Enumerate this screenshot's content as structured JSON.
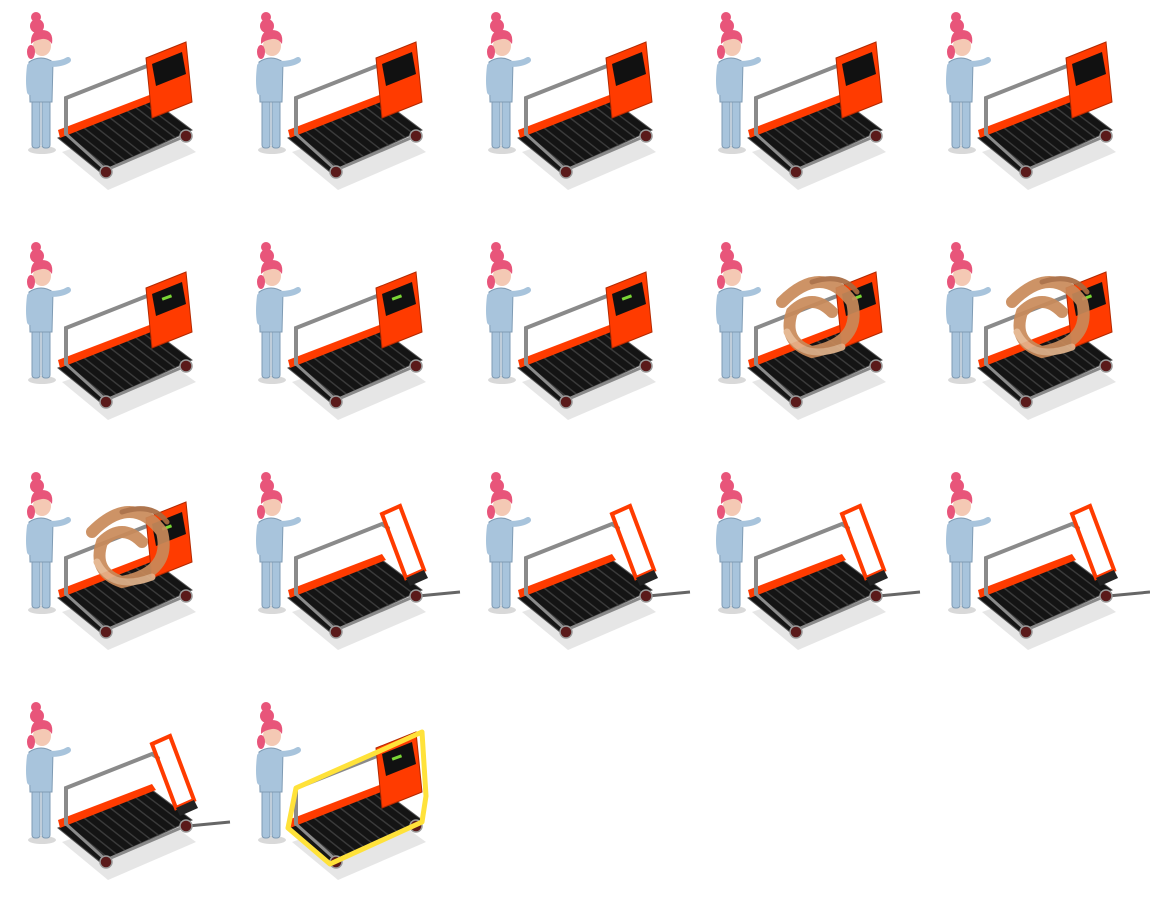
{
  "sheet": {
    "title": "",
    "frame_count": 17,
    "columns": 5,
    "frames": [
      {
        "index": 1,
        "state": "idle"
      },
      {
        "index": 2,
        "state": "idle"
      },
      {
        "index": 3,
        "state": "idle"
      },
      {
        "index": 4,
        "state": "idle"
      },
      {
        "index": 5,
        "state": "idle"
      },
      {
        "index": 6,
        "state": "powered"
      },
      {
        "index": 7,
        "state": "powered"
      },
      {
        "index": 8,
        "state": "powered"
      },
      {
        "index": 9,
        "state": "swirl"
      },
      {
        "index": 10,
        "state": "swirl"
      },
      {
        "index": 11,
        "state": "swirl"
      },
      {
        "index": 12,
        "state": "tilted"
      },
      {
        "index": 13,
        "state": "tilted"
      },
      {
        "index": 14,
        "state": "tilted"
      },
      {
        "index": 15,
        "state": "tilted"
      },
      {
        "index": 16,
        "state": "tilted"
      },
      {
        "index": 17,
        "state": "selected"
      }
    ]
  },
  "colors": {
    "frame_orange": "#ff3b00",
    "belt_black": "#141414",
    "rail_grey": "#8a8a8a",
    "scrubs_blue": "#a8c4dc",
    "hair_pink": "#e8557a",
    "skin": "#f4c9b4",
    "swirl_tan": "#c98a5a",
    "display_green": "#7bd836",
    "selection_yellow": "#ffe23a"
  },
  "icons": {
    "character": "nurse-icon",
    "machine": "treadmill-icon"
  }
}
